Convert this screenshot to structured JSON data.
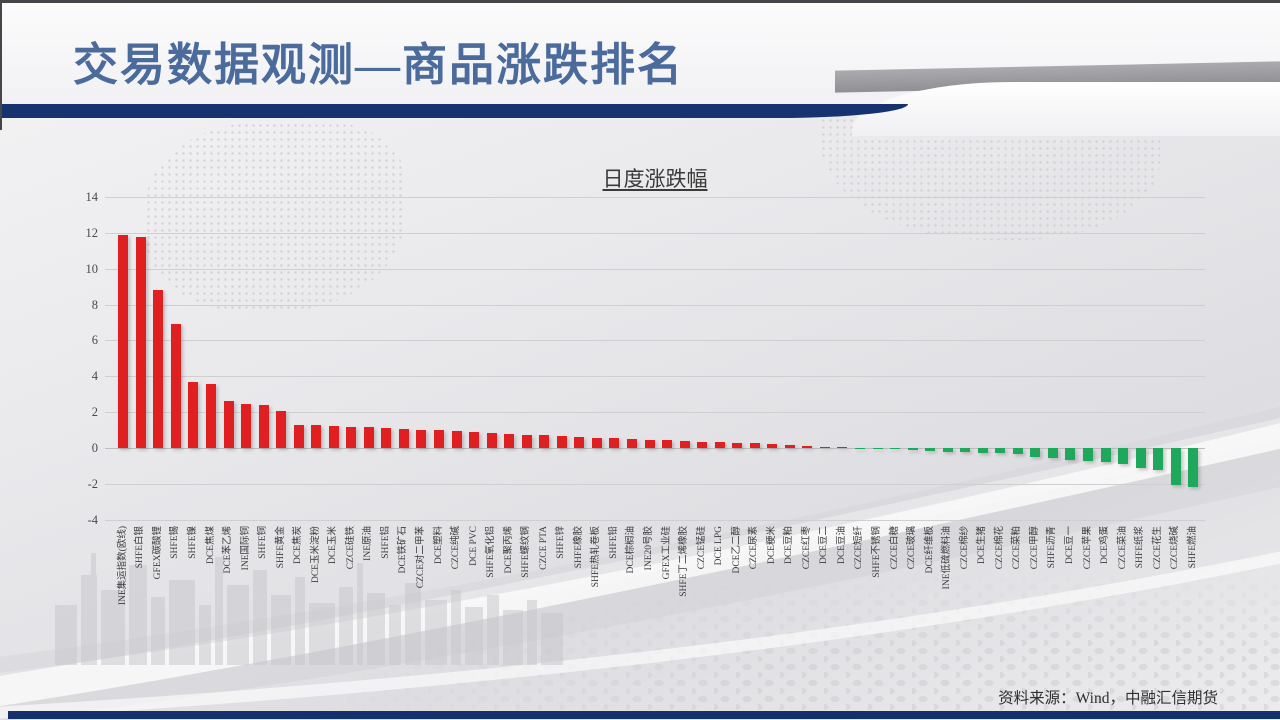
{
  "page": {
    "title": "交易数据观测—商品涨跌排名",
    "source_note": "资料来源：Wind，中融汇信期货"
  },
  "colors": {
    "title_text": "#4b6b9c",
    "header_stripe": "#17336f",
    "bottom_bar": "#14316b",
    "positive_bar": "#e02020",
    "negative_bar": "#1ea85c"
  },
  "chart_data": {
    "type": "bar",
    "title": "日度涨跌幅",
    "xlabel": "",
    "ylabel": "",
    "ylim": [
      -4,
      14
    ],
    "ytick_interval": 2,
    "yticks": [
      14,
      12,
      10,
      8,
      6,
      4,
      2,
      0,
      -2,
      -4
    ],
    "grid": true,
    "legend": "none",
    "positive_color": "#e02020",
    "negative_color": "#1ea85c",
    "categories": [
      "INE集运指数(欧线)",
      "SHFE白银",
      "GFEX碳酸锂",
      "SHFE锡",
      "SHFE镍",
      "DCE焦煤",
      "DCE苯乙烯",
      "INE国际铜",
      "SHFE铜",
      "SHFE黄金",
      "DCE焦炭",
      "DCE玉米淀粉",
      "DCE玉米",
      "CZCE硅铁",
      "INE原油",
      "SHFE铝",
      "DCE铁矿石",
      "CZCE对二甲苯",
      "DCE塑料",
      "CZCE纯碱",
      "DCE PVC",
      "SHFE氧化铝",
      "DCE聚丙烯",
      "SHFE螺纹钢",
      "CZCE PTA",
      "SHFE锌",
      "SHFE橡胶",
      "SHFE热轧卷板",
      "SHFE铅",
      "DCE棕榈油",
      "INE20号胶",
      "GFEX工业硅",
      "SHFE丁二烯橡胶",
      "CZCE锰硅",
      "DCE LPG",
      "DCE乙二醇",
      "CZCE尿素",
      "DCE粳米",
      "DCE豆粕",
      "CZCE红枣",
      "DCE豆二",
      "DCE豆油",
      "CZCE短纤",
      "SHFE不锈钢",
      "CZCE白糖",
      "CZCE玻璃",
      "DCE纤维板",
      "INE低硫燃料油",
      "CZCE棉纱",
      "DCE生猪",
      "CZCE棉花",
      "CZCE菜粕",
      "CZCE甲醇",
      "SHFE沥青",
      "DCE豆一",
      "CZCE苹果",
      "DCE鸡蛋",
      "CZCE菜油",
      "SHFE纸浆",
      "CZCE花生",
      "CZCE烧碱",
      "SHFE燃油"
    ],
    "values": [
      11.9,
      11.75,
      8.8,
      6.9,
      3.7,
      3.55,
      2.6,
      2.45,
      2.38,
      2.05,
      1.3,
      1.26,
      1.22,
      1.19,
      1.15,
      1.1,
      1.07,
      1.03,
      1.0,
      0.95,
      0.9,
      0.85,
      0.8,
      0.75,
      0.7,
      0.65,
      0.6,
      0.57,
      0.53,
      0.5,
      0.46,
      0.43,
      0.4,
      0.36,
      0.33,
      0.3,
      0.26,
      0.22,
      0.15,
      0.11,
      0.06,
      0.03,
      -0.02,
      -0.03,
      -0.05,
      -0.1,
      -0.15,
      -0.2,
      -0.24,
      -0.28,
      -0.3,
      -0.35,
      -0.5,
      -0.55,
      -0.65,
      -0.75,
      -0.8,
      -0.9,
      -1.1,
      -1.2,
      -2.05,
      -2.15
    ]
  }
}
